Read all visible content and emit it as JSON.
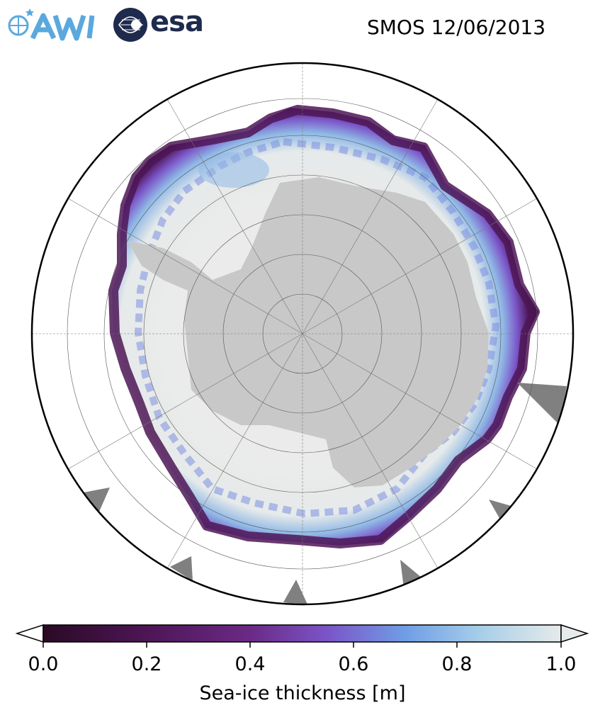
{
  "header": {
    "title": "SMOS 12/06/2013",
    "logos": [
      {
        "name": "AWI",
        "text": "AWI",
        "color": "#5aa9de"
      },
      {
        "name": "esa",
        "text": "esa",
        "color": "#1f2b4d"
      }
    ]
  },
  "map": {
    "projection": "south-polar-stereographic",
    "land_color": "#c8c8c8",
    "ocean_color": "#ffffff",
    "missing_color": "#808080"
  },
  "colorbar": {
    "label": "Sea-ice thickness [m]",
    "min": 0.0,
    "max": 1.0,
    "ticks": [
      "0.0",
      "0.2",
      "0.4",
      "0.6",
      "0.8",
      "1.0"
    ],
    "extend": "both",
    "colors": [
      "#2b0a25",
      "#4d1656",
      "#6b2a86",
      "#7b55c8",
      "#6f9ee6",
      "#a9d0e8",
      "#e6eaea"
    ]
  }
}
